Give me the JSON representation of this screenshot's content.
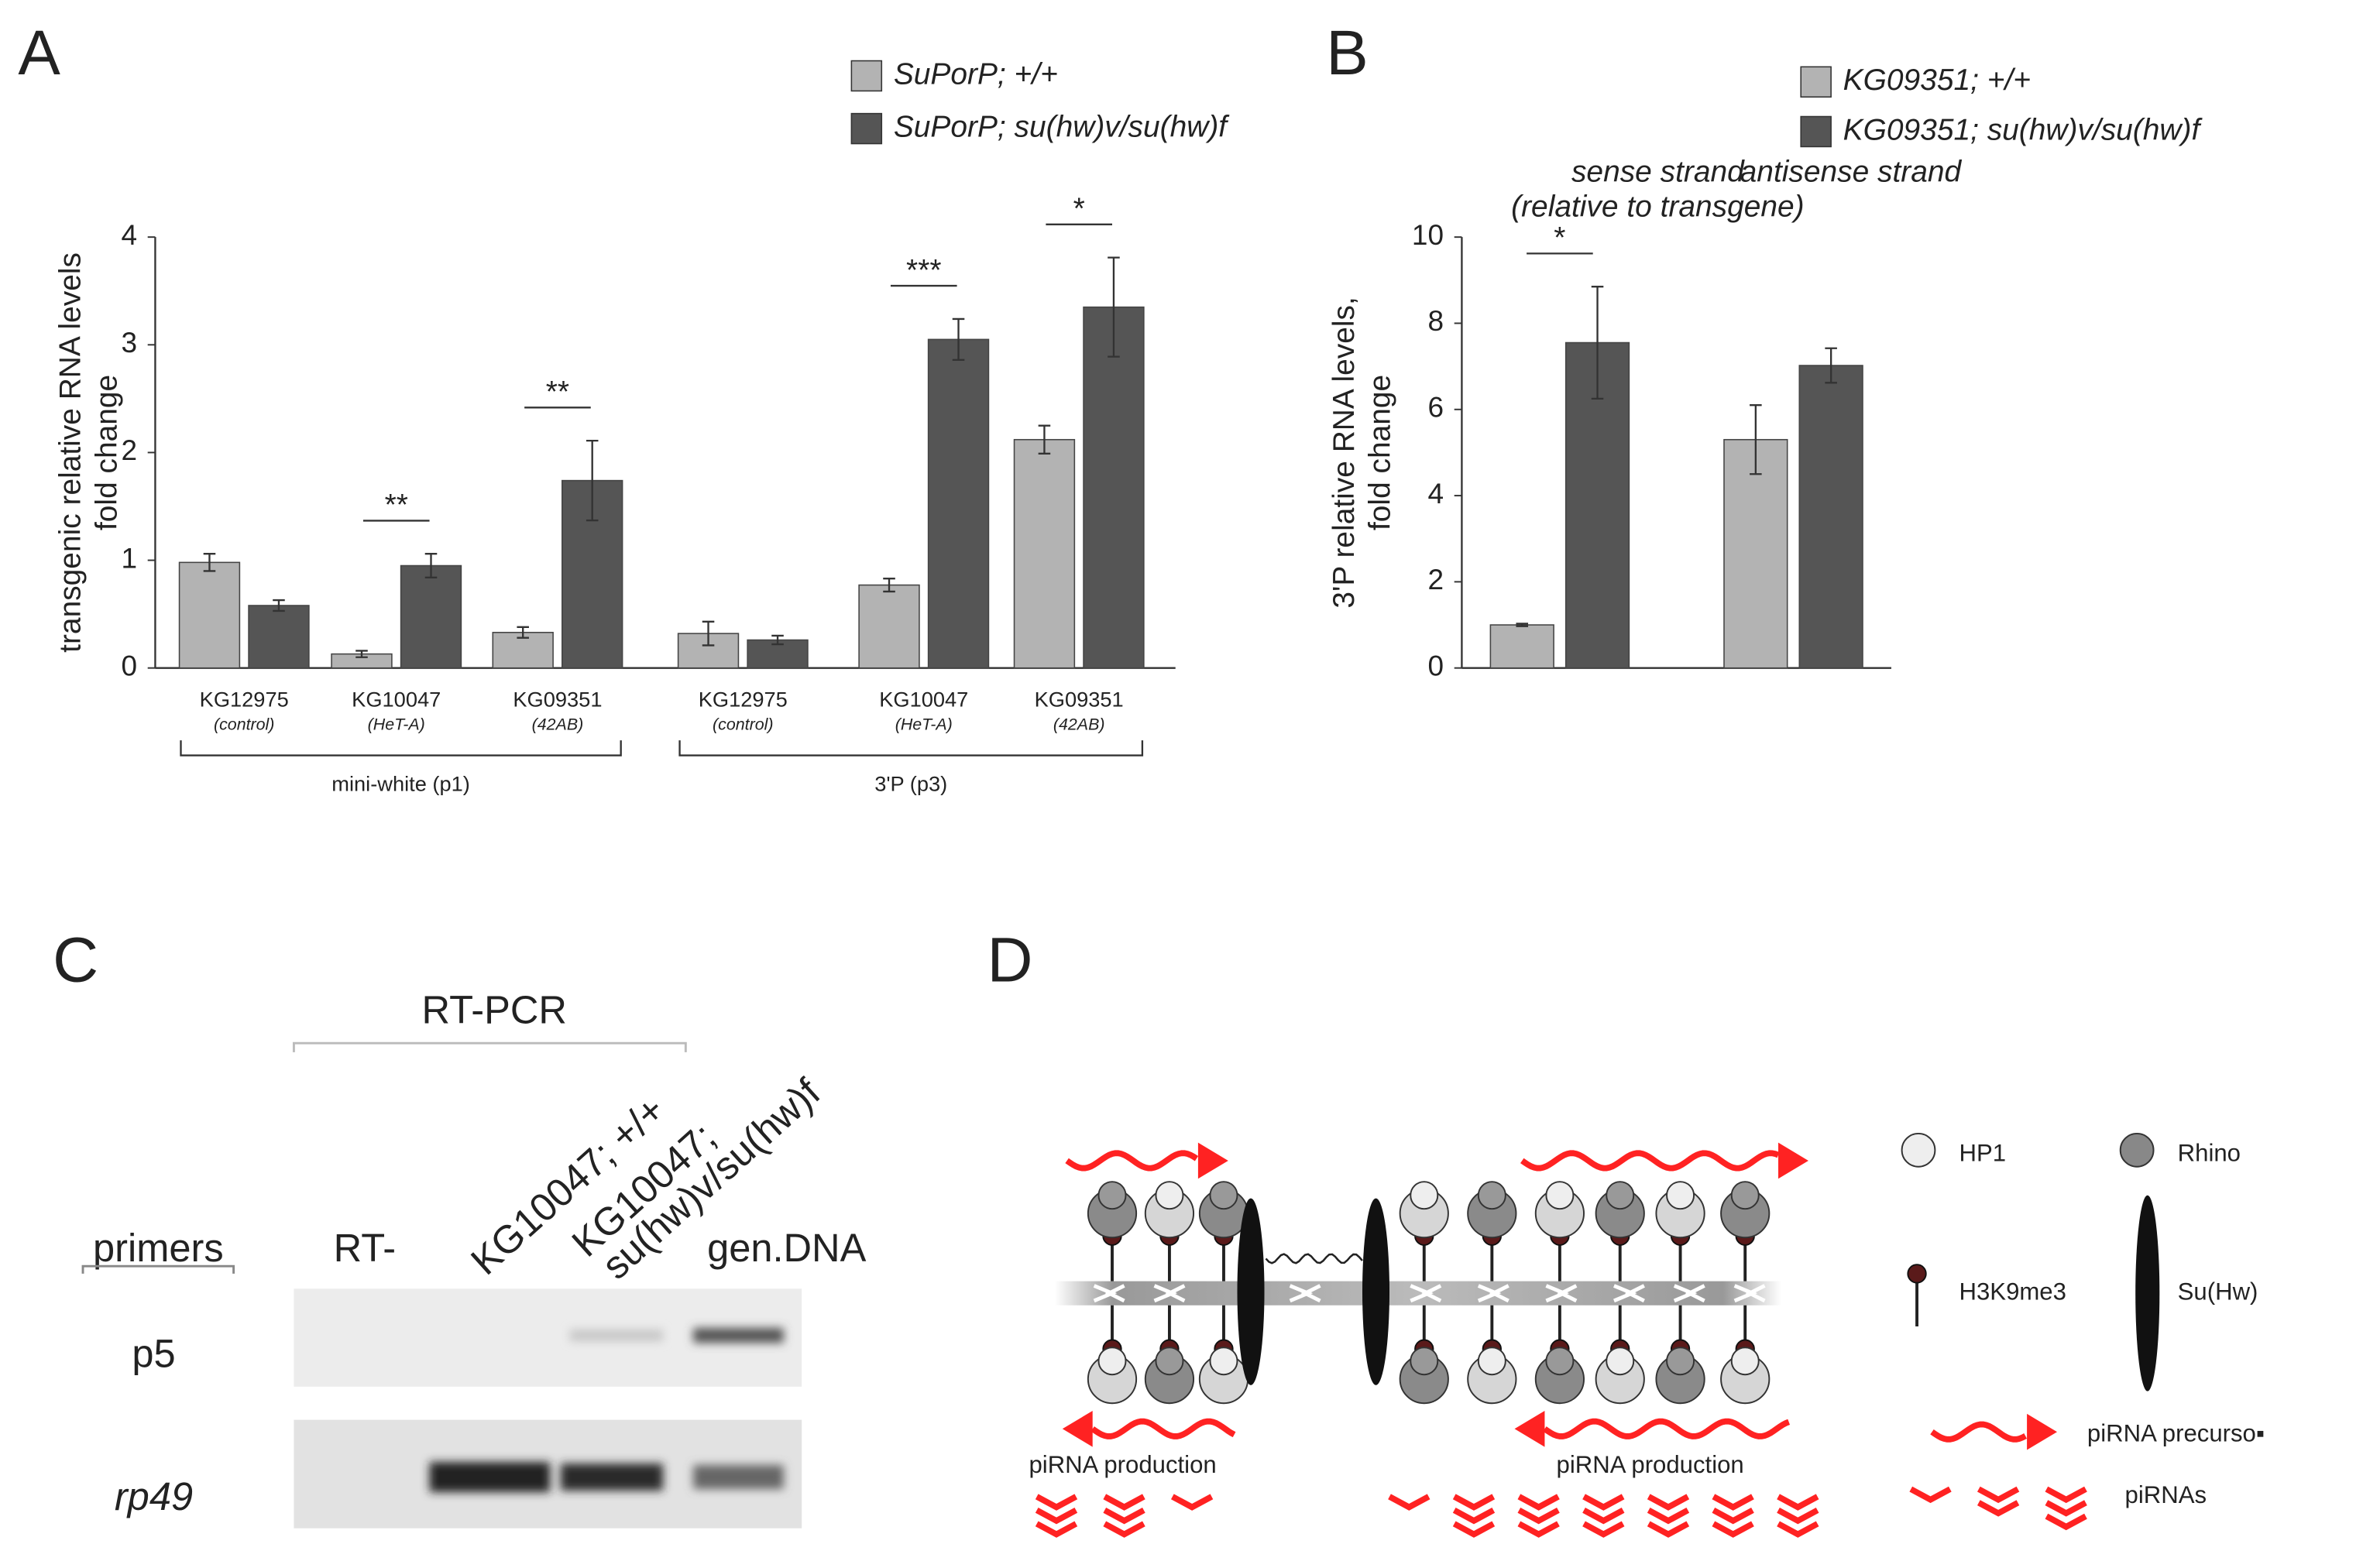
{
  "panel_labels": [
    "A",
    "B",
    "C",
    "D"
  ],
  "chart_data": [
    {
      "type": "bar",
      "y_label": [
        "transgenic relative  RNA levels",
        "fold change"
      ],
      "categories": [
        "KG12975",
        "KG10047",
        "KG09351",
        "KG12975",
        "KG10047",
        "KG09351"
      ],
      "category_notes": [
        "(control)",
        "(HeT-A)",
        "(42AB)",
        "(control)",
        "(HeT-A)",
        "(42AB)"
      ],
      "group_labels": [
        "mini-white (p1)",
        "3'P (p3)"
      ],
      "series": [
        {
          "name": "SuPorP; +/+",
          "color": "#b3b3b3",
          "values": [
            0.98,
            0.13,
            0.33,
            0.32,
            0.77,
            2.12
          ],
          "errors": [
            0.08,
            0.03,
            0.05,
            0.11,
            0.06,
            0.13
          ]
        },
        {
          "name": "SuPorP; su(hw)v/su(hw)f",
          "color": "#555555",
          "values": [
            0.58,
            0.95,
            1.74,
            0.26,
            3.05,
            3.35
          ],
          "errors": [
            0.05,
            0.11,
            0.37,
            0.04,
            0.19,
            0.46
          ]
        }
      ],
      "significance": [
        null,
        "**",
        "**",
        null,
        "***",
        "*"
      ],
      "ylim": [
        0,
        4
      ],
      "yticks": [
        0,
        1,
        2,
        3,
        4
      ],
      "grid": false,
      "legend": "top"
    },
    {
      "type": "bar",
      "y_label": [
        "3'P relative  RNA levels,",
        "fold change"
      ],
      "categories": [
        [
          "sense strand",
          "(relative to transgene)"
        ],
        [
          "antisense strand"
        ]
      ],
      "series": [
        {
          "name": "KG09351; +/+",
          "color": "#b3b3b3",
          "values": [
            1.0,
            5.3
          ],
          "errors": [
            0.03,
            0.8
          ]
        },
        {
          "name": "KG09351; su(hw)v/su(hw)f",
          "color": "#555555",
          "values": [
            7.55,
            7.02
          ],
          "errors": [
            1.3,
            0.4
          ]
        }
      ],
      "significance": [
        "*",
        null
      ],
      "ylim": [
        0,
        10
      ],
      "yticks": [
        0,
        2,
        4,
        6,
        8,
        10
      ],
      "grid": false,
      "legend": "top"
    }
  ],
  "gel": {
    "header": "RT-PCR",
    "primers_label": "primers",
    "lanes": [
      [
        "RT-"
      ],
      [
        "KG10047; +/+"
      ],
      [
        "KG10047;",
        "su(hw)v/su(hw)f"
      ],
      [
        "gen.DNA"
      ]
    ],
    "rows": [
      "p5",
      "rp49"
    ]
  },
  "diagram": {
    "production_labels": [
      "piRNA production",
      "piRNA production"
    ],
    "legend": [
      "HP1",
      "Rhino",
      "H3K9me3",
      "Su(Hw)",
      "piRNA precurso▪",
      "piRNAs"
    ]
  }
}
